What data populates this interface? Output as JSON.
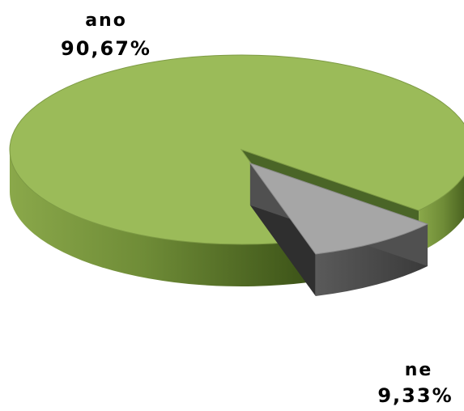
{
  "chart_data": {
    "type": "pie",
    "style": "3d-exploded",
    "slices": [
      {
        "label": "ano",
        "value": 90.67,
        "value_label": "90,67%",
        "color": "#9bbb59"
      },
      {
        "label": "ne",
        "value": 9.33,
        "value_label": "9,33%",
        "color": "#a6a6a6"
      }
    ],
    "legend": "none"
  }
}
